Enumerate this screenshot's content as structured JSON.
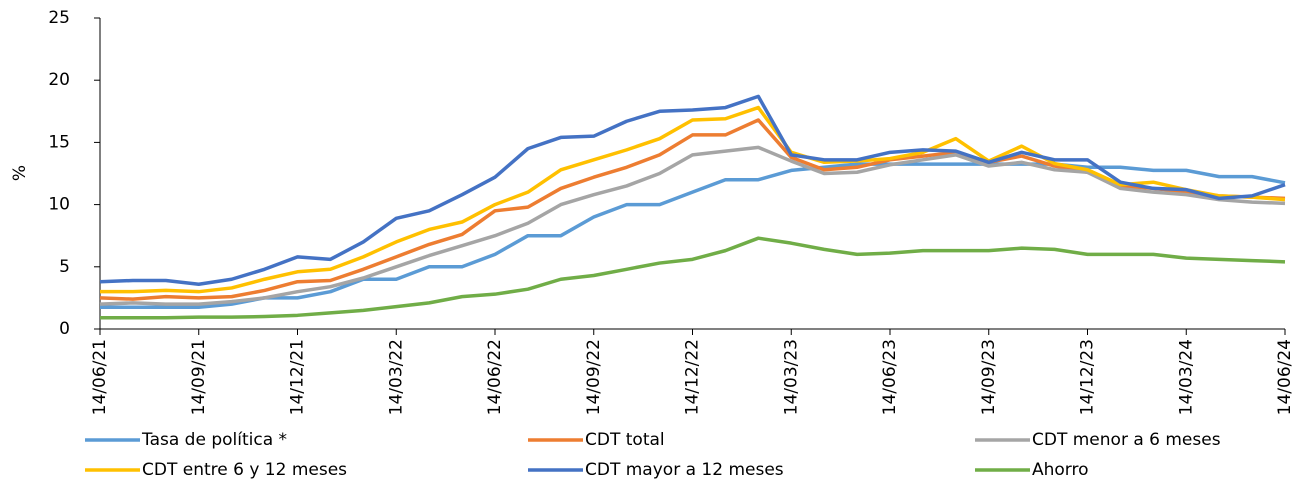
{
  "chart_data": {
    "type": "line",
    "ylabel": "%",
    "x": [
      "14/06/21",
      "14/07/21",
      "14/08/21",
      "14/09/21",
      "14/10/21",
      "14/11/21",
      "14/12/21",
      "14/01/22",
      "14/02/22",
      "14/03/22",
      "14/04/22",
      "14/05/22",
      "14/06/22",
      "14/07/22",
      "14/08/22",
      "14/09/22",
      "14/10/22",
      "14/11/22",
      "14/12/22",
      "14/01/23",
      "14/02/23",
      "14/03/23",
      "14/04/23",
      "14/05/23",
      "14/06/23",
      "14/07/23",
      "14/08/23",
      "14/09/23",
      "14/10/23",
      "14/11/23",
      "14/12/23",
      "14/01/24",
      "14/02/24",
      "14/03/24",
      "14/04/24",
      "14/05/24",
      "14/06/24"
    ],
    "xticks": [
      "14/06/21",
      "14/09/21",
      "14/12/21",
      "14/03/22",
      "14/06/22",
      "14/09/22",
      "14/12/22",
      "14/03/23",
      "14/06/23",
      "14/09/23",
      "14/12/23",
      "14/03/24",
      "14/06/24"
    ],
    "ylim": [
      0,
      25
    ],
    "yticks": [
      0,
      5,
      10,
      15,
      20,
      25
    ],
    "grid": false,
    "series": [
      {
        "name": "Tasa de política *",
        "color": "#5B9BD5",
        "values": [
          1.75,
          1.75,
          1.75,
          1.75,
          2.0,
          2.5,
          2.5,
          3.0,
          4.0,
          4.0,
          5.0,
          5.0,
          6.0,
          7.5,
          7.5,
          9.0,
          10.0,
          10.0,
          11.0,
          12.0,
          12.0,
          12.75,
          13.0,
          13.25,
          13.25,
          13.25,
          13.25,
          13.25,
          13.25,
          13.25,
          13.0,
          13.0,
          12.75,
          12.75,
          12.25,
          12.25,
          11.75
        ]
      },
      {
        "name": "CDT total",
        "color": "#ED7D31",
        "values": [
          2.5,
          2.4,
          2.6,
          2.5,
          2.6,
          3.1,
          3.8,
          3.9,
          4.8,
          5.8,
          6.8,
          7.6,
          9.5,
          9.8,
          11.3,
          12.2,
          13.0,
          14.0,
          15.6,
          15.6,
          16.8,
          13.8,
          12.8,
          13.0,
          13.6,
          13.9,
          14.2,
          13.4,
          13.9,
          13.1,
          12.6,
          11.5,
          11.3,
          11.0,
          10.7,
          10.6,
          10.5
        ]
      },
      {
        "name": "CDT menor a 6 meses",
        "color": "#A5A5A5",
        "values": [
          2.0,
          2.1,
          2.0,
          2.0,
          2.2,
          2.5,
          3.0,
          3.4,
          4.1,
          5.0,
          5.9,
          6.7,
          7.5,
          8.5,
          10.0,
          10.8,
          11.5,
          12.5,
          14.0,
          14.3,
          14.6,
          13.5,
          12.5,
          12.6,
          13.2,
          13.6,
          14.0,
          13.1,
          13.4,
          12.8,
          12.6,
          11.3,
          11.0,
          10.8,
          10.4,
          10.2,
          10.1
        ]
      },
      {
        "name": "CDT entre 6 y 12 meses",
        "color": "#FFC000",
        "values": [
          3.0,
          3.0,
          3.1,
          3.0,
          3.3,
          4.0,
          4.6,
          4.8,
          5.8,
          7.0,
          8.0,
          8.6,
          10.0,
          11.0,
          12.8,
          13.6,
          14.4,
          15.3,
          16.8,
          16.9,
          17.8,
          14.2,
          13.4,
          13.5,
          13.7,
          14.2,
          15.3,
          13.5,
          14.7,
          13.3,
          12.8,
          11.6,
          11.8,
          11.2,
          10.7,
          10.6,
          10.4
        ]
      },
      {
        "name": "CDT mayor a 12 meses",
        "color": "#4472C4",
        "values": [
          3.8,
          3.9,
          3.9,
          3.6,
          4.0,
          4.8,
          5.8,
          5.6,
          7.0,
          8.9,
          9.5,
          10.8,
          12.2,
          14.5,
          15.4,
          15.5,
          16.7,
          17.5,
          17.6,
          17.8,
          18.7,
          14.0,
          13.6,
          13.6,
          14.2,
          14.4,
          14.3,
          13.4,
          14.2,
          13.6,
          13.6,
          11.8,
          11.3,
          11.2,
          10.5,
          10.7,
          11.6
        ]
      },
      {
        "name": "Ahorro",
        "color": "#70AD47",
        "values": [
          0.9,
          0.9,
          0.9,
          0.95,
          0.95,
          1.0,
          1.1,
          1.3,
          1.5,
          1.8,
          2.1,
          2.6,
          2.8,
          3.2,
          4.0,
          4.3,
          4.8,
          5.3,
          5.6,
          6.3,
          7.3,
          6.9,
          6.4,
          6.0,
          6.1,
          6.3,
          6.3,
          6.3,
          6.5,
          6.4,
          6.0,
          6.0,
          6.0,
          5.7,
          5.6,
          5.5,
          5.4
        ]
      }
    ]
  }
}
